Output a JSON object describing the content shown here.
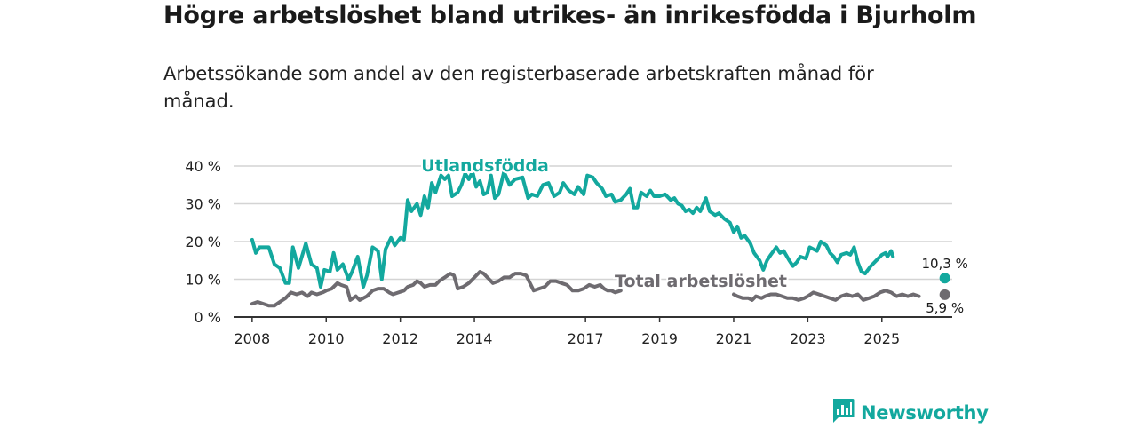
{
  "title": "Högre arbetslöshet bland utrikes- än inrikesfödda i Bjurholm",
  "subtitle": "Arbetssökande som andel av den registerbaserade arbetskraften månad för månad.",
  "brand": {
    "name": "Newsworthy"
  },
  "colors": {
    "foreign": "#13a89e",
    "total": "#6e6b70",
    "grid": "#d4d4d4",
    "axis": "#333333",
    "brand": "#13a89e"
  },
  "chart_data": {
    "type": "line",
    "title": "Högre arbetslöshet bland utrikes- än inrikesfödda i Bjurholm",
    "xlabel": "",
    "ylabel": "",
    "xlim": [
      2007.5,
      2026.9
    ],
    "ylim": [
      0,
      40
    ],
    "yticks": [
      0,
      10,
      20,
      30,
      40
    ],
    "ytick_labels": [
      "0 %",
      "10 %",
      "20 %",
      "30 %",
      "40 %"
    ],
    "xticks": [
      2008,
      2010,
      2012,
      2014,
      2017,
      2019,
      2021,
      2023,
      2025
    ],
    "xtick_labels": [
      "2008",
      "2010",
      "2012",
      "2014",
      "2017",
      "2019",
      "2021",
      "2023",
      "2025"
    ],
    "grid": true,
    "series": [
      {
        "name": "Utlandsfödda",
        "label": "Utlandsfödda",
        "end_label": "10,3 %",
        "end_point": [
          2026.7,
          10.3
        ],
        "points": [
          [
            2008.0,
            20.5
          ],
          [
            2008.1,
            17
          ],
          [
            2008.2,
            18.5
          ],
          [
            2008.45,
            18.5
          ],
          [
            2008.6,
            14
          ],
          [
            2008.75,
            13
          ],
          [
            2008.9,
            9
          ],
          [
            2009.0,
            9
          ],
          [
            2009.1,
            18.5
          ],
          [
            2009.25,
            13
          ],
          [
            2009.45,
            19.5
          ],
          [
            2009.6,
            14
          ],
          [
            2009.75,
            13
          ],
          [
            2009.85,
            8
          ],
          [
            2009.95,
            12.5
          ],
          [
            2010.1,
            12
          ],
          [
            2010.2,
            17
          ],
          [
            2010.3,
            12.5
          ],
          [
            2010.45,
            14
          ],
          [
            2010.6,
            10
          ],
          [
            2010.7,
            12
          ],
          [
            2010.85,
            16
          ],
          [
            2011.0,
            8
          ],
          [
            2011.1,
            11
          ],
          [
            2011.25,
            18.5
          ],
          [
            2011.4,
            17.5
          ],
          [
            2011.5,
            10
          ],
          [
            2011.6,
            18
          ],
          [
            2011.75,
            21
          ],
          [
            2011.85,
            19
          ],
          [
            2012.0,
            21
          ],
          [
            2012.1,
            20.5
          ],
          [
            2012.2,
            31
          ],
          [
            2012.3,
            28
          ],
          [
            2012.45,
            30
          ],
          [
            2012.55,
            27
          ],
          [
            2012.65,
            32
          ],
          [
            2012.75,
            29
          ],
          [
            2012.85,
            35.5
          ],
          [
            2012.95,
            33
          ],
          [
            2013.1,
            37.5
          ],
          [
            2013.2,
            36.5
          ],
          [
            2013.3,
            37.5
          ],
          [
            2013.4,
            32
          ],
          [
            2013.55,
            33
          ],
          [
            2013.65,
            35
          ],
          [
            2013.75,
            38
          ],
          [
            2013.85,
            36.5
          ],
          [
            2013.95,
            38.5
          ],
          [
            2014.05,
            34.5
          ],
          [
            2014.15,
            36
          ],
          [
            2014.25,
            32.5
          ],
          [
            2014.35,
            33
          ],
          [
            2014.45,
            37.5
          ],
          [
            2014.55,
            31.5
          ],
          [
            2014.65,
            32.5
          ],
          [
            2014.8,
            38.5
          ],
          [
            2014.95,
            35
          ],
          [
            2015.1,
            36.5
          ],
          [
            2015.3,
            37
          ],
          [
            2015.45,
            31.5
          ],
          [
            2015.55,
            32.5
          ],
          [
            2015.7,
            32
          ],
          [
            2015.85,
            35
          ],
          [
            2016.0,
            35.5
          ],
          [
            2016.15,
            32
          ],
          [
            2016.3,
            33
          ],
          [
            2016.4,
            35.5
          ],
          [
            2016.55,
            33.5
          ],
          [
            2016.7,
            32.5
          ],
          [
            2016.8,
            34.5
          ],
          [
            2016.95,
            32.5
          ],
          [
            2017.05,
            37.5
          ],
          [
            2017.2,
            37
          ],
          [
            2017.3,
            35.5
          ],
          [
            2017.45,
            34
          ],
          [
            2017.55,
            32
          ],
          [
            2017.7,
            32.5
          ],
          [
            2017.8,
            30.5
          ],
          [
            2017.95,
            31
          ],
          [
            2018.1,
            32.5
          ],
          [
            2018.2,
            34
          ],
          [
            2018.3,
            29
          ],
          [
            2018.4,
            29
          ],
          [
            2018.5,
            33
          ],
          [
            2018.65,
            32
          ],
          [
            2018.75,
            33.5
          ],
          [
            2018.85,
            32
          ],
          [
            2019.0,
            32
          ],
          [
            2019.15,
            32.5
          ],
          [
            2019.3,
            31
          ],
          [
            2019.4,
            31.5
          ],
          [
            2019.5,
            30
          ],
          [
            2019.6,
            29.5
          ],
          [
            2019.7,
            28
          ],
          [
            2019.8,
            28.5
          ],
          [
            2019.9,
            27.5
          ],
          [
            2020.0,
            29
          ],
          [
            2020.1,
            28
          ],
          [
            2020.25,
            31.5
          ],
          [
            2020.35,
            28
          ],
          [
            2020.5,
            27
          ],
          [
            2020.6,
            27.5
          ],
          [
            2020.75,
            26
          ],
          [
            2020.9,
            25
          ],
          [
            2021.0,
            22.5
          ],
          [
            2021.1,
            24
          ],
          [
            2021.2,
            21
          ],
          [
            2021.3,
            21.5
          ],
          [
            2021.45,
            19.5
          ],
          [
            2021.55,
            17
          ],
          [
            2021.7,
            15
          ],
          [
            2021.8,
            12.5
          ],
          [
            2021.9,
            15
          ],
          [
            2022.0,
            16.5
          ],
          [
            2022.15,
            18.5
          ],
          [
            2022.25,
            17
          ],
          [
            2022.35,
            17.5
          ],
          [
            2022.5,
            15
          ],
          [
            2022.6,
            13.5
          ],
          [
            2022.7,
            14.5
          ],
          [
            2022.8,
            16
          ],
          [
            2022.95,
            15.5
          ],
          [
            2023.05,
            18.5
          ],
          [
            2023.15,
            18
          ],
          [
            2023.25,
            17.5
          ],
          [
            2023.35,
            20
          ],
          [
            2023.5,
            19
          ],
          [
            2023.6,
            17
          ],
          [
            2023.7,
            16
          ],
          [
            2023.8,
            14.5
          ],
          [
            2023.9,
            16.5
          ],
          [
            2024.05,
            17
          ],
          [
            2024.15,
            16.5
          ],
          [
            2024.25,
            18.5
          ],
          [
            2024.35,
            14.5
          ],
          [
            2024.45,
            12
          ],
          [
            2024.55,
            11.5
          ],
          [
            2024.7,
            13.5
          ],
          [
            2024.85,
            15
          ],
          [
            2025.0,
            16.5
          ],
          [
            2025.1,
            17
          ],
          [
            2025.15,
            16
          ],
          [
            2025.25,
            17.5
          ],
          [
            2025.3,
            16
          ]
        ]
      },
      {
        "name": "Total arbetslöshet",
        "label": "Total arbetslöshet",
        "end_label": "5,9 %",
        "end_point": [
          2026.7,
          5.9
        ],
        "points": [
          [
            2008.0,
            3.5
          ],
          [
            2008.15,
            4
          ],
          [
            2008.3,
            3.5
          ],
          [
            2008.45,
            3
          ],
          [
            2008.6,
            3
          ],
          [
            2008.75,
            4
          ],
          [
            2008.9,
            5
          ],
          [
            2009.05,
            6.5
          ],
          [
            2009.2,
            6
          ],
          [
            2009.35,
            6.5
          ],
          [
            2009.5,
            5.5
          ],
          [
            2009.6,
            6.5
          ],
          [
            2009.75,
            6
          ],
          [
            2009.9,
            6.5
          ],
          [
            2010.0,
            7
          ],
          [
            2010.15,
            7.5
          ],
          [
            2010.3,
            9
          ],
          [
            2010.4,
            8.5
          ],
          [
            2010.55,
            8
          ],
          [
            2010.65,
            4.5
          ],
          [
            2010.8,
            5.5
          ],
          [
            2010.9,
            4.5
          ],
          [
            2011.0,
            5
          ],
          [
            2011.1,
            5.5
          ],
          [
            2011.25,
            7
          ],
          [
            2011.4,
            7.5
          ],
          [
            2011.55,
            7.5
          ],
          [
            2011.7,
            6.5
          ],
          [
            2011.8,
            6
          ],
          [
            2011.95,
            6.5
          ],
          [
            2012.1,
            7
          ],
          [
            2012.2,
            8
          ],
          [
            2012.35,
            8.5
          ],
          [
            2012.45,
            9.5
          ],
          [
            2012.55,
            9
          ],
          [
            2012.65,
            8
          ],
          [
            2012.8,
            8.5
          ],
          [
            2012.95,
            8.5
          ],
          [
            2013.05,
            9.5
          ],
          [
            2013.2,
            10.5
          ],
          [
            2013.35,
            11.5
          ],
          [
            2013.45,
            11
          ],
          [
            2013.55,
            7.5
          ],
          [
            2013.7,
            8
          ],
          [
            2013.85,
            9
          ],
          [
            2014.0,
            10.5
          ],
          [
            2014.15,
            12
          ],
          [
            2014.25,
            11.5
          ],
          [
            2014.4,
            10
          ],
          [
            2014.5,
            9
          ],
          [
            2014.65,
            9.5
          ],
          [
            2014.8,
            10.5
          ],
          [
            2014.95,
            10.5
          ],
          [
            2015.1,
            11.5
          ],
          [
            2015.25,
            11.5
          ],
          [
            2015.4,
            11
          ],
          [
            2015.5,
            9
          ],
          [
            2015.6,
            7
          ],
          [
            2015.75,
            7.5
          ],
          [
            2015.9,
            8
          ],
          [
            2016.05,
            9.5
          ],
          [
            2016.2,
            9.5
          ],
          [
            2016.35,
            9
          ],
          [
            2016.5,
            8.5
          ],
          [
            2016.65,
            7
          ],
          [
            2016.8,
            7
          ],
          [
            2016.95,
            7.5
          ],
          [
            2017.1,
            8.5
          ],
          [
            2017.25,
            8
          ],
          [
            2017.4,
            8.5
          ],
          [
            2017.5,
            7.5
          ],
          [
            2017.6,
            7
          ],
          [
            2017.7,
            7
          ],
          [
            2017.8,
            6.5
          ],
          [
            2017.95,
            7
          ]
        ],
        "points2": [
          [
            2021.0,
            6
          ],
          [
            2021.1,
            5.5
          ],
          [
            2021.25,
            5
          ],
          [
            2021.4,
            5
          ],
          [
            2021.5,
            4.5
          ],
          [
            2021.6,
            5.5
          ],
          [
            2021.75,
            5
          ],
          [
            2021.85,
            5.5
          ],
          [
            2022.0,
            6
          ],
          [
            2022.15,
            6
          ],
          [
            2022.3,
            5.5
          ],
          [
            2022.45,
            5
          ],
          [
            2022.6,
            5
          ],
          [
            2022.75,
            4.5
          ],
          [
            2022.9,
            5
          ],
          [
            2023.0,
            5.5
          ],
          [
            2023.15,
            6.5
          ],
          [
            2023.3,
            6
          ],
          [
            2023.45,
            5.5
          ],
          [
            2023.6,
            5
          ],
          [
            2023.75,
            4.5
          ],
          [
            2023.9,
            5.5
          ],
          [
            2024.05,
            6
          ],
          [
            2024.2,
            5.5
          ],
          [
            2024.35,
            6
          ],
          [
            2024.5,
            4.5
          ],
          [
            2024.65,
            5
          ],
          [
            2024.8,
            5.5
          ],
          [
            2024.95,
            6.5
          ],
          [
            2025.1,
            7
          ],
          [
            2025.25,
            6.5
          ],
          [
            2025.4,
            5.5
          ],
          [
            2025.55,
            6
          ],
          [
            2025.7,
            5.5
          ],
          [
            2025.85,
            6
          ],
          [
            2026.0,
            5.5
          ]
        ]
      }
    ]
  }
}
